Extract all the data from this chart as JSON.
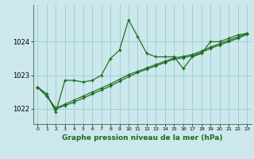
{
  "title": "Graphe pression niveau de la mer (hPa)",
  "background_color": "#cce8ec",
  "grid_color": "#99ccd4",
  "line_color": "#1a6b1a",
  "xlim": [
    -0.5,
    23.5
  ],
  "ylim": [
    1021.55,
    1025.1
  ],
  "yticks": [
    1022,
    1023,
    1024
  ],
  "xticks": [
    0,
    1,
    2,
    3,
    4,
    5,
    6,
    7,
    8,
    9,
    10,
    11,
    12,
    13,
    14,
    15,
    16,
    17,
    18,
    19,
    20,
    21,
    22,
    23
  ],
  "series1": {
    "x": [
      0,
      1,
      2,
      3,
      4,
      5,
      6,
      7,
      8,
      9,
      10,
      11,
      12,
      13,
      14,
      15,
      16,
      17,
      18,
      19,
      20,
      21,
      22,
      23
    ],
    "y": [
      1022.65,
      1022.45,
      1021.9,
      1022.85,
      1022.85,
      1022.8,
      1022.85,
      1023.0,
      1023.5,
      1023.75,
      1024.65,
      1024.15,
      1023.65,
      1023.55,
      1023.55,
      1023.55,
      1023.2,
      1023.55,
      1023.65,
      1024.0,
      1024.0,
      1024.1,
      1024.2,
      1024.25
    ]
  },
  "series2": {
    "x": [
      0,
      1,
      2,
      3,
      4,
      5,
      6,
      7,
      8,
      9,
      10,
      11,
      12,
      13,
      14,
      15,
      16,
      17,
      18,
      19,
      20,
      21,
      22,
      23
    ],
    "y": [
      1022.65,
      1022.38,
      1022.0,
      1022.1,
      1022.2,
      1022.32,
      1022.44,
      1022.56,
      1022.68,
      1022.82,
      1022.96,
      1023.08,
      1023.18,
      1023.28,
      1023.38,
      1023.48,
      1023.52,
      1023.58,
      1023.68,
      1023.8,
      1023.9,
      1024.0,
      1024.1,
      1024.22
    ]
  },
  "series3": {
    "x": [
      0,
      1,
      2,
      3,
      4,
      5,
      6,
      7,
      8,
      9,
      10,
      11,
      12,
      13,
      14,
      15,
      16,
      17,
      18,
      19,
      20,
      21,
      22,
      23
    ],
    "y": [
      1022.65,
      1022.38,
      1022.02,
      1022.14,
      1022.26,
      1022.38,
      1022.5,
      1022.62,
      1022.74,
      1022.88,
      1023.02,
      1023.12,
      1023.22,
      1023.32,
      1023.42,
      1023.52,
      1023.56,
      1023.62,
      1023.72,
      1023.84,
      1023.94,
      1024.04,
      1024.14,
      1024.24
    ]
  }
}
